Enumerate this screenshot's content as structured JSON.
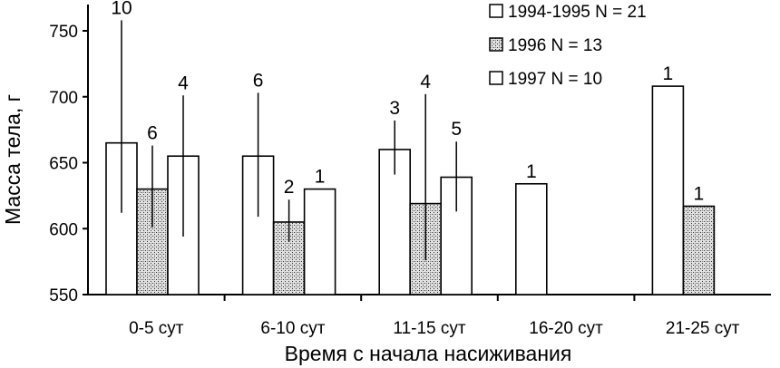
{
  "chart_data": {
    "type": "bar",
    "title": "",
    "xlabel": "Время с начала насиживания",
    "ylabel": "Масса тела, г",
    "ylim": [
      550,
      760
    ],
    "yticks": [
      "550",
      "600",
      "650",
      "700",
      "750"
    ],
    "grid": false,
    "legend_position": "top-right",
    "categories": [
      "0-5 сут",
      "6-10 сут",
      "11-15 сут",
      "16-20 сут",
      "21-25 сут"
    ],
    "series": [
      {
        "name": "1994-1995 N = 21",
        "pattern": "white",
        "values": [
          665,
          655,
          660,
          634,
          708
        ],
        "err_low": [
          612,
          609,
          641,
          null,
          null
        ],
        "err_high": [
          758,
          703,
          682,
          null,
          null
        ],
        "labels": [
          "10",
          "6",
          "3",
          "1",
          "1"
        ]
      },
      {
        "name": "1996 N = 13",
        "pattern": "stippled",
        "values": [
          630,
          605,
          619,
          null,
          617
        ],
        "err_low": [
          601,
          590,
          576,
          null,
          null
        ],
        "err_high": [
          663,
          622,
          702,
          null,
          null
        ],
        "labels": [
          "6",
          "2",
          "4",
          "",
          "1"
        ]
      },
      {
        "name": "1997 N = 10",
        "pattern": "white",
        "values": [
          655,
          630,
          639,
          null,
          null
        ],
        "err_low": [
          594,
          null,
          613,
          null,
          null
        ],
        "err_high": [
          701,
          null,
          666,
          null,
          null
        ],
        "labels": [
          "4",
          "1",
          "5",
          "",
          ""
        ]
      }
    ]
  }
}
